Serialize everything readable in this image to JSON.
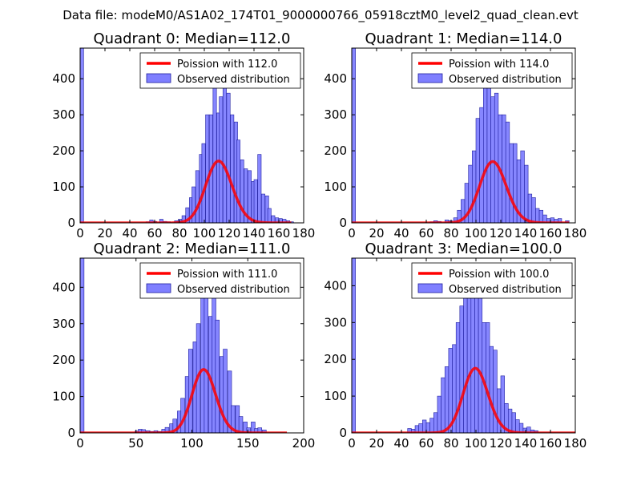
{
  "suptitle": "Data file: modeM0/AS1A02_174T01_9000000766_05918cztM0_level2_quad_clean.evt",
  "colors": {
    "poisson_line": "#ff0000",
    "hist_fill": "#7f7fff",
    "hist_edge": "#2020a0",
    "axes": "#000000",
    "background": "#ffffff"
  },
  "chart_data": [
    {
      "type": "bar",
      "title": "Quadrant 0: Median=112.0",
      "xlim": [
        0,
        180
      ],
      "ylim": [
        0,
        485
      ],
      "xticks": [
        0,
        20,
        40,
        60,
        80,
        100,
        120,
        140,
        160,
        180
      ],
      "yticks": [
        0,
        100,
        200,
        300,
        400
      ],
      "legend_location": "top-right",
      "poisson": {
        "label": "Poission with 112.0",
        "mean": 112.0,
        "scale": 4550,
        "x_range": [
          0,
          170
        ]
      },
      "observed": {
        "label": "Observed distribution",
        "bin_width": 2.8,
        "bins": [
          [
            0,
            485
          ],
          [
            53,
            3
          ],
          [
            56,
            8
          ],
          [
            59,
            4
          ],
          [
            64,
            10
          ],
          [
            67,
            4
          ],
          [
            70,
            3
          ],
          [
            76,
            6
          ],
          [
            79,
            10
          ],
          [
            82,
            20
          ],
          [
            85,
            42
          ],
          [
            88,
            70
          ],
          [
            90,
            100
          ],
          [
            93,
            145
          ],
          [
            96,
            190
          ],
          [
            98,
            220
          ],
          [
            101,
            300
          ],
          [
            104,
            300
          ],
          [
            107,
            390
          ],
          [
            110,
            305
          ],
          [
            112,
            350
          ],
          [
            115,
            380
          ],
          [
            118,
            360
          ],
          [
            121,
            300
          ],
          [
            124,
            280
          ],
          [
            126,
            230
          ],
          [
            129,
            175
          ],
          [
            132,
            150
          ],
          [
            135,
            145
          ],
          [
            138,
            115
          ],
          [
            140,
            120
          ],
          [
            143,
            190
          ],
          [
            146,
            80
          ],
          [
            149,
            75
          ],
          [
            151,
            40
          ],
          [
            154,
            20
          ],
          [
            157,
            14
          ],
          [
            160,
            12
          ],
          [
            163,
            10
          ],
          [
            166,
            6
          ],
          [
            169,
            3
          ]
        ]
      }
    },
    {
      "type": "bar",
      "title": "Quadrant 1: Median=114.0",
      "xlim": [
        0,
        180
      ],
      "ylim": [
        0,
        485
      ],
      "xticks": [
        0,
        20,
        40,
        60,
        80,
        100,
        120,
        140,
        160,
        180
      ],
      "yticks": [
        0,
        100,
        200,
        300,
        400
      ],
      "legend_location": "top-right",
      "poisson": {
        "label": "Poission with 114.0",
        "mean": 114.0,
        "scale": 4550,
        "x_range": [
          0,
          175
        ]
      },
      "observed": {
        "label": "Observed distribution",
        "bin_width": 3.0,
        "bins": [
          [
            0,
            485
          ],
          [
            63,
            3
          ],
          [
            66,
            6
          ],
          [
            69,
            4
          ],
          [
            75,
            8
          ],
          [
            78,
            6
          ],
          [
            82,
            14
          ],
          [
            85,
            35
          ],
          [
            88,
            65
          ],
          [
            91,
            110
          ],
          [
            94,
            160
          ],
          [
            97,
            200
          ],
          [
            100,
            290
          ],
          [
            103,
            320
          ],
          [
            106,
            390
          ],
          [
            109,
            410
          ],
          [
            112,
            350
          ],
          [
            115,
            360
          ],
          [
            118,
            300
          ],
          [
            121,
            300
          ],
          [
            124,
            280
          ],
          [
            127,
            220
          ],
          [
            130,
            220
          ],
          [
            133,
            175
          ],
          [
            136,
            200
          ],
          [
            139,
            160
          ],
          [
            142,
            80
          ],
          [
            145,
            70
          ],
          [
            148,
            40
          ],
          [
            151,
            35
          ],
          [
            154,
            22
          ],
          [
            157,
            12
          ],
          [
            160,
            14
          ],
          [
            163,
            10
          ],
          [
            166,
            12
          ],
          [
            172,
            6
          ]
        ]
      }
    },
    {
      "type": "bar",
      "title": "Quadrant 2: Median=111.0",
      "xlim": [
        0,
        200
      ],
      "ylim": [
        0,
        480
      ],
      "xticks": [
        0,
        50,
        100,
        150,
        200
      ],
      "yticks": [
        0,
        100,
        200,
        300,
        400
      ],
      "legend_location": "top-right",
      "poisson": {
        "label": "Poission with 111.0",
        "mean": 111.0,
        "scale": 4600,
        "x_range": [
          0,
          185
        ]
      },
      "observed": {
        "label": "Observed distribution",
        "bin_width": 3.5,
        "bins": [
          [
            0,
            480
          ],
          [
            49,
            5
          ],
          [
            52,
            10
          ],
          [
            55,
            9
          ],
          [
            59,
            6
          ],
          [
            62,
            4
          ],
          [
            66,
            6
          ],
          [
            69,
            4
          ],
          [
            73,
            10
          ],
          [
            76,
            15
          ],
          [
            80,
            25
          ],
          [
            83,
            38
          ],
          [
            87,
            60
          ],
          [
            90,
            95
          ],
          [
            94,
            155
          ],
          [
            97,
            230
          ],
          [
            101,
            250
          ],
          [
            104,
            300
          ],
          [
            108,
            420
          ],
          [
            111,
            400
          ],
          [
            115,
            320
          ],
          [
            118,
            395
          ],
          [
            121,
            310
          ],
          [
            125,
            210
          ],
          [
            128,
            230
          ],
          [
            132,
            170
          ],
          [
            135,
            75
          ],
          [
            139,
            75
          ],
          [
            142,
            45
          ],
          [
            146,
            30
          ],
          [
            149,
            14
          ],
          [
            153,
            30
          ],
          [
            156,
            12
          ],
          [
            159,
            14
          ],
          [
            163,
            8
          ]
        ]
      }
    },
    {
      "type": "bar",
      "title": "Quadrant 3: Median=100.0",
      "xlim": [
        0,
        180
      ],
      "ylim": [
        0,
        475
      ],
      "xticks": [
        0,
        20,
        40,
        60,
        80,
        100,
        120,
        140,
        160,
        180
      ],
      "yticks": [
        0,
        100,
        200,
        300,
        400
      ],
      "legend_location": "top-right",
      "poisson": {
        "label": "Poission with 100.0",
        "mean": 100.0,
        "scale": 4400,
        "x_range": [
          0,
          180
        ]
      },
      "observed": {
        "label": "Observed distribution",
        "bin_width": 3.0,
        "bins": [
          [
            0,
            475
          ],
          [
            45,
            12
          ],
          [
            48,
            10
          ],
          [
            51,
            20
          ],
          [
            54,
            25
          ],
          [
            57,
            35
          ],
          [
            60,
            28
          ],
          [
            63,
            40
          ],
          [
            66,
            55
          ],
          [
            69,
            100
          ],
          [
            72,
            150
          ],
          [
            75,
            180
          ],
          [
            78,
            230
          ],
          [
            81,
            240
          ],
          [
            84,
            300
          ],
          [
            87,
            345
          ],
          [
            90,
            380
          ],
          [
            93,
            410
          ],
          [
            96,
            430
          ],
          [
            99,
            380
          ],
          [
            102,
            370
          ],
          [
            105,
            300
          ],
          [
            108,
            300
          ],
          [
            111,
            235
          ],
          [
            114,
            225
          ],
          [
            117,
            120
          ],
          [
            120,
            155
          ],
          [
            123,
            80
          ],
          [
            126,
            65
          ],
          [
            129,
            55
          ],
          [
            132,
            36
          ],
          [
            135,
            26
          ],
          [
            138,
            13
          ],
          [
            141,
            16
          ],
          [
            144,
            8
          ],
          [
            147,
            6
          ]
        ]
      }
    }
  ]
}
